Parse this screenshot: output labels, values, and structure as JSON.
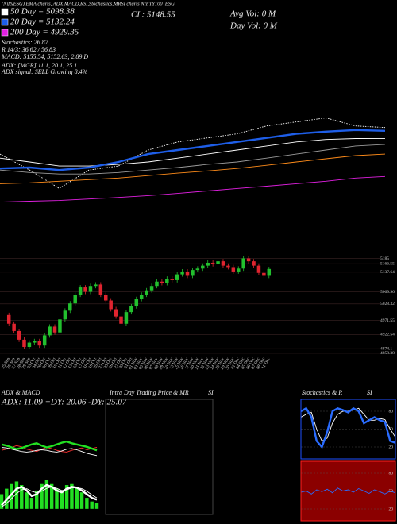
{
  "chart_data": [
    {
      "type": "line",
      "title": "(NiftyESG) EMA charts, ADX,MACD,RSI,Stochastics,MRSI charts NIFTY100_ESG",
      "annotations": [
        "CL: 5148.55",
        "Avg Vol: 0  M",
        "Day Vol: 0  M",
        "Stochastics: 26.87",
        "R 14/3: 36.62 / 56.83",
        "MACD: 5155.54, 5152.63, 2.89 D",
        "ADX: [MGR] 11.1, 20.1, 25.1",
        "ADX  signal: SELL Growing 8.4%"
      ],
      "ylim": [
        4690,
        5220
      ],
      "series": [
        {
          "color": "#ffffff",
          "style": "dotted",
          "values": [
            5029,
            4958,
            4876,
            4958,
            4976,
            5047,
            5083,
            5101,
            5119,
            5154,
            5172,
            5190,
            5154,
            5147
          ]
        },
        {
          "color": "#9a9a9a",
          "values": [
            4958,
            4947,
            4940,
            4940,
            4947,
            4958,
            4969,
            4983,
            4994,
            5011,
            5029,
            5047,
            5065,
            5072
          ]
        },
        {
          "name": "50 Day  = 5098.38",
          "color": "#ffffff",
          "values": [
            5011,
            4994,
            4976,
            4976,
            4983,
            4994,
            5011,
            5029,
            5047,
            5065,
            5083,
            5094,
            5098,
            5098.38
          ]
        },
        {
          "name": "20 Day  = 5132.24",
          "color": "#1e5ee8",
          "style": "thick",
          "values": [
            4965,
            4969,
            4958,
            4969,
            4994,
            5029,
            5047,
            5065,
            5083,
            5101,
            5119,
            5129,
            5136,
            5132.24
          ]
        },
        {
          "color": "#ff8c1a",
          "values": [
            4897,
            4901,
            4908,
            4915,
            4922,
            4933,
            4944,
            4954,
            4965,
            4979,
            4994,
            5008,
            5022,
            5029
          ]
        },
        {
          "name": "200 Day  = 4929.35",
          "color": "#e020e0",
          "values": [
            4815,
            4819,
            4822,
            4829,
            4836,
            4844,
            4854,
            4865,
            4876,
            4886,
            4897,
            4908,
            4922,
            4929.35
          ]
        }
      ]
    },
    {
      "type": "candlestick",
      "categories": [
        "25 Sep",
        "26 Sep",
        "27 Sep",
        "28 Sep",
        "29 Sep",
        "03 Oct",
        "04 Oct",
        "05 Oct",
        "06 Oct",
        "09 Oct",
        "10 Oct",
        "11 Oct",
        "12 Oct",
        "13 Oct",
        "16 Oct",
        "17 Oct",
        "18 Oct",
        "19 Oct",
        "20 Oct",
        "23 Oct",
        "25 Oct",
        "26 Oct",
        "27 Oct",
        "30 Oct",
        "31 Oct",
        "01 Nov",
        "02 Nov",
        "03 Nov",
        "06 Nov",
        "07 Nov",
        "08 Nov",
        "09 Nov",
        "10 Nov",
        "13 Nov",
        "15 Nov",
        "16 Nov",
        "17 Nov",
        "20 Nov",
        "21 Nov",
        "22 Nov",
        "23 Nov",
        "24 Nov",
        "28 Nov",
        "29 Nov",
        "30 Nov",
        "01 Dec",
        "04 Dec",
        "05 Dec",
        "06 Dec",
        "07 Dec",
        "08 Dec",
        "11 Dec"
      ],
      "open": [
        4990,
        4960,
        4935,
        4905,
        4880,
        4895,
        4900,
        4885,
        4920,
        4950,
        4930,
        4975,
        5005,
        5030,
        5060,
        5085,
        5070,
        5090,
        5095,
        5060,
        5040,
        5010,
        4985,
        4960,
        5000,
        5020,
        5045,
        5060,
        5075,
        5090,
        5105,
        5100,
        5115,
        5110,
        5130,
        5140,
        5125,
        5145,
        5150,
        5160,
        5170,
        5165,
        5175,
        5160,
        5155,
        5140,
        5150,
        5185,
        5175,
        5160,
        5135,
        5125
      ],
      "high": [
        4998,
        4968,
        4943,
        4913,
        4903,
        4908,
        4908,
        4928,
        4958,
        4958,
        4983,
        5013,
        5038,
        5068,
        5093,
        5093,
        5098,
        5103,
        5103,
        5068,
        5048,
        5018,
        4993,
        5008,
        5028,
        5053,
        5068,
        5083,
        5098,
        5113,
        5113,
        5123,
        5123,
        5138,
        5148,
        5148,
        5153,
        5158,
        5168,
        5178,
        5178,
        5183,
        5183,
        5168,
        5163,
        5158,
        5193,
        5193,
        5183,
        5168,
        5143,
        5156
      ],
      "low": [
        4952,
        4927,
        4897,
        4872,
        4872,
        4887,
        4877,
        4877,
        4912,
        4922,
        4922,
        4967,
        4997,
        5022,
        5052,
        5062,
        5062,
        5082,
        5052,
        5032,
        5002,
        4977,
        4952,
        4952,
        4992,
        5012,
        5037,
        5052,
        5067,
        5082,
        5092,
        5092,
        5102,
        5102,
        5122,
        5117,
        5117,
        5137,
        5142,
        5152,
        5157,
        5157,
        5152,
        5147,
        5132,
        5132,
        5142,
        5167,
        5152,
        5127,
        5117,
        5117
      ],
      "close": [
        4960,
        4935,
        4905,
        4880,
        4895,
        4900,
        4885,
        4920,
        4950,
        4930,
        4975,
        5005,
        5030,
        5060,
        5085,
        5070,
        5090,
        5095,
        5060,
        5040,
        5010,
        4985,
        4960,
        5000,
        5020,
        5045,
        5060,
        5075,
        5090,
        5105,
        5100,
        5115,
        5110,
        5130,
        5140,
        5125,
        5145,
        5150,
        5160,
        5170,
        5165,
        5175,
        5160,
        5155,
        5140,
        5150,
        5185,
        5175,
        5160,
        5135,
        5125,
        5148.55
      ],
      "up_color": "#22c02e",
      "down_color": "#e0242f",
      "ylim": [
        4850,
        5200
      ],
      "yticks": [
        5185,
        5166.55,
        5137.64,
        5069.96,
        5028.32,
        4971.55,
        4922.54,
        4874.1,
        4858.38
      ],
      "grid": true
    },
    {
      "type": "line",
      "title": "ADX  & MACD",
      "subtitle": "ADX: 11.09  +DY: 20.06  -DY: 25.07",
      "ylim": [
        0,
        50
      ],
      "series": [
        {
          "color": "#ff3030",
          "values": [
            20,
            22,
            25,
            28,
            26,
            22,
            20,
            18,
            22,
            25,
            23,
            20,
            18,
            17,
            20,
            22,
            24,
            21,
            23,
            25.07
          ]
        },
        {
          "color": "#22e022",
          "style": "thick",
          "values": [
            30,
            28,
            25,
            22,
            24,
            27,
            30,
            32,
            28,
            25,
            27,
            30,
            33,
            35,
            32,
            30,
            28,
            26,
            23,
            20.06
          ]
        },
        {
          "color": "#ffffff",
          "values": [
            25,
            24,
            22,
            20,
            18,
            17,
            18,
            20,
            21,
            20,
            18,
            17,
            19,
            22,
            23,
            21,
            18,
            15,
            13,
            11.09
          ]
        }
      ]
    },
    {
      "type": "line",
      "ylim": [
        -20,
        100
      ],
      "series": [
        {
          "color": "#22e022",
          "style": "bar",
          "values": [
            40,
            55,
            70,
            75,
            65,
            45,
            30,
            50,
            70,
            80,
            70,
            55,
            50,
            65,
            70,
            60,
            45,
            30,
            20,
            15
          ]
        },
        {
          "color": "#ffffff",
          "style": "thick",
          "values": [
            10,
            25,
            40,
            55,
            60,
            50,
            35,
            40,
            55,
            65,
            60,
            50,
            45,
            55,
            60,
            58,
            50,
            40,
            30,
            25
          ]
        },
        {
          "color": "#ffffff",
          "values": [
            5,
            15,
            28,
            42,
            52,
            55,
            48,
            44,
            48,
            56,
            60,
            56,
            50,
            52,
            57,
            58,
            55,
            48,
            38,
            30
          ]
        }
      ]
    },
    {
      "type": "empty",
      "title": "Intra Day Trading Price  & MR",
      "subtitle": "SI",
      "frame": "#444444"
    },
    {
      "type": "line",
      "title": "Stochastics & R",
      "subtitle": "SI",
      "frame": "#1e50ff",
      "ylim": [
        0,
        100
      ],
      "yticks": [
        20,
        50,
        80
      ],
      "series": [
        {
          "color": "#ffffff",
          "values": [
            70,
            75,
            78,
            50,
            30,
            35,
            60,
            75,
            80,
            80,
            82,
            85,
            75,
            65,
            65,
            68,
            66,
            50,
            36.62
          ]
        },
        {
          "color": "#2a6cff",
          "style": "thick",
          "values": [
            80,
            85,
            70,
            30,
            20,
            45,
            80,
            85,
            82,
            78,
            85,
            80,
            60,
            65,
            70,
            65,
            62,
            30,
            26.87
          ]
        }
      ]
    },
    {
      "type": "line",
      "frame": "#ff2020",
      "background": "#8b0000",
      "ylim": [
        0,
        100
      ],
      "yticks": [
        20,
        50,
        80
      ],
      "series": [
        {
          "color": "#2a6cff",
          "values": [
            48,
            50,
            45,
            52,
            49,
            53,
            47,
            55,
            50,
            52,
            48,
            54,
            50,
            46,
            52,
            49,
            45,
            50,
            47
          ]
        }
      ]
    }
  ]
}
